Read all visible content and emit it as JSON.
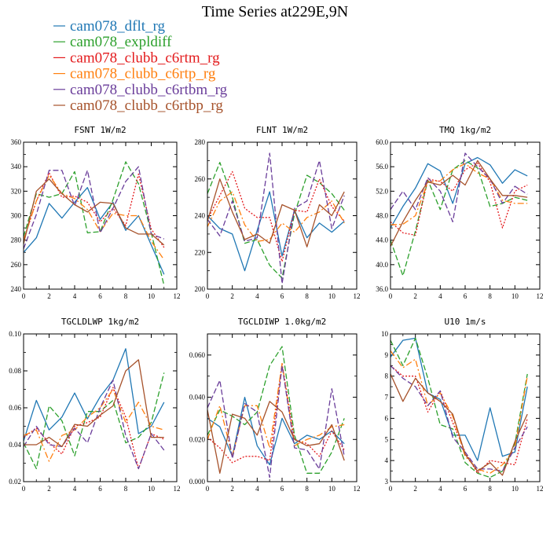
{
  "figure": {
    "title": "Time Series at229E,9N",
    "legend": [
      {
        "name": "cam078_dflt_rg",
        "color": "#1f77b4",
        "dash": ""
      },
      {
        "name": "cam078_expldiff",
        "color": "#2ca02c",
        "dash": "7,3"
      },
      {
        "name": "cam078_clubb_c6rtm_rg",
        "color": "#e31a1c",
        "dash": "2,2"
      },
      {
        "name": "cam078_clubb_c6rtp_rg",
        "color": "#ff7f0e",
        "dash": "8,3,2,3"
      },
      {
        "name": "cam078_clubb_c6rtbm_rg",
        "color": "#6a3d9a",
        "dash": "7,3"
      },
      {
        "name": "cam078_clubb_c6rtbp_rg",
        "color": "#a6522b",
        "dash": ""
      }
    ]
  },
  "chart_data": [
    {
      "type": "line",
      "title": "FSNT  1W/m2",
      "x": [
        0,
        1,
        2,
        3,
        4,
        5,
        6,
        7,
        8,
        9,
        10,
        11
      ],
      "xlim": [
        0,
        12
      ],
      "xticks": [
        0,
        2,
        4,
        6,
        8,
        10,
        12
      ],
      "ylim": [
        240,
        360
      ],
      "yticks": [
        240,
        260,
        280,
        300,
        320,
        340,
        360
      ],
      "ytick_labels": [
        "240",
        "260",
        "280",
        "300",
        "320",
        "340",
        "360"
      ],
      "series": [
        {
          "values": [
            270,
            282,
            310,
            298,
            311,
            323,
            297,
            311,
            288,
            300,
            276,
            252
          ]
        },
        {
          "values": [
            283,
            318,
            315,
            318,
            336,
            286,
            287,
            313,
            344,
            326,
            286,
            243
          ]
        },
        {
          "values": [
            280,
            312,
            335,
            315,
            316,
            311,
            295,
            306,
            292,
            334,
            289,
            274
          ]
        },
        {
          "values": [
            280,
            312,
            333,
            318,
            314,
            305,
            287,
            302,
            300,
            300,
            279,
            264
          ]
        },
        {
          "values": [
            273,
            301,
            337,
            337,
            308,
            337,
            286,
            306,
            328,
            340,
            285,
            281
          ]
        },
        {
          "values": [
            277,
            320,
            330,
            318,
            309,
            303,
            311,
            310,
            290,
            285,
            285,
            276
          ]
        }
      ]
    },
    {
      "type": "line",
      "title": "FLNT  1W/m2",
      "x": [
        0,
        1,
        2,
        3,
        4,
        5,
        6,
        7,
        8,
        9,
        10,
        11
      ],
      "xlim": [
        0,
        12
      ],
      "xticks": [
        0,
        2,
        4,
        6,
        8,
        10,
        12
      ],
      "ylim": [
        200,
        280
      ],
      "yticks": [
        200,
        220,
        240,
        260,
        280
      ],
      "ytick_labels": [
        "200",
        "220",
        "240",
        "260",
        "280"
      ],
      "series": [
        {
          "values": [
            240,
            233,
            230,
            210,
            232,
            253,
            218,
            243,
            228,
            236,
            231,
            237
          ]
        },
        {
          "values": [
            252,
            269,
            250,
            225,
            227,
            213,
            206,
            241,
            262,
            258,
            252,
            243
          ]
        },
        {
          "values": [
            238,
            251,
            264,
            244,
            239,
            239,
            215,
            243,
            242,
            260,
            245,
            237
          ]
        },
        {
          "values": [
            234,
            248,
            253,
            235,
            226,
            227,
            236,
            231,
            239,
            242,
            248,
            236
          ]
        },
        {
          "values": [
            238,
            229,
            248,
            226,
            228,
            274,
            203,
            244,
            248,
            270,
            233,
            251
          ]
        },
        {
          "values": [
            237,
            260,
            242,
            227,
            230,
            225,
            246,
            243,
            223,
            246,
            240,
            253
          ]
        }
      ]
    },
    {
      "type": "line",
      "title": "TMQ  1kg/m2",
      "x": [
        0,
        1,
        2,
        3,
        4,
        5,
        6,
        7,
        8,
        9,
        10,
        11
      ],
      "xlim": [
        0,
        12
      ],
      "xticks": [
        0,
        2,
        4,
        6,
        8,
        10,
        12
      ],
      "ylim": [
        36,
        60
      ],
      "yticks": [
        36,
        40,
        44,
        48,
        52,
        56,
        60
      ],
      "ytick_labels": [
        "36.0",
        "40.0",
        "44.0",
        "48.0",
        "52.0",
        "56.0",
        "60.0"
      ],
      "series": [
        {
          "values": [
            46,
            49.5,
            52.5,
            56.5,
            55.3,
            50,
            56.5,
            57.5,
            56.3,
            53.3,
            55.5,
            54.5
          ]
        },
        {
          "values": [
            44,
            38.2,
            45.5,
            53.8,
            49,
            55.5,
            57,
            55.8,
            49.5,
            50,
            51,
            50.5
          ]
        },
        {
          "values": [
            47,
            45.2,
            44.8,
            54,
            53.6,
            52,
            55.5,
            56.6,
            53.5,
            46,
            52,
            53
          ]
        },
        {
          "values": [
            46.5,
            46.6,
            48,
            53.5,
            53.7,
            55.5,
            56.5,
            55,
            54,
            50.5,
            50,
            50
          ]
        },
        {
          "values": [
            49,
            52,
            49,
            54.2,
            52,
            47,
            58.2,
            56,
            54,
            50,
            52.8,
            51.5
          ]
        },
        {
          "values": [
            43,
            47,
            50.5,
            53.5,
            53,
            54.6,
            53,
            57,
            54,
            51.3,
            51.3,
            51
          ]
        }
      ]
    },
    {
      "type": "line",
      "title": "TGCLDLWP  1kg/m2",
      "x": [
        0,
        1,
        2,
        3,
        4,
        5,
        6,
        7,
        8,
        9,
        10,
        11
      ],
      "xlim": [
        0,
        12
      ],
      "xticks": [
        0,
        2,
        4,
        6,
        8,
        10,
        12
      ],
      "ylim": [
        0.02,
        0.1
      ],
      "yticks": [
        0.02,
        0.04,
        0.06,
        0.08,
        0.1
      ],
      "ytick_labels": [
        "0.02",
        "0.04",
        "0.06",
        "0.08",
        "0.10"
      ],
      "series": [
        {
          "values": [
            0.042,
            0.064,
            0.048,
            0.055,
            0.068,
            0.054,
            0.066,
            0.075,
            0.092,
            0.046,
            0.05,
            0.063
          ]
        },
        {
          "values": [
            0.041,
            0.027,
            0.061,
            0.053,
            0.034,
            0.058,
            0.058,
            0.064,
            0.041,
            0.044,
            0.052,
            0.079
          ]
        },
        {
          "values": [
            0.044,
            0.049,
            0.041,
            0.035,
            0.05,
            0.052,
            0.055,
            0.071,
            0.055,
            0.027,
            0.046,
            0.043
          ]
        },
        {
          "values": [
            0.045,
            0.048,
            0.031,
            0.045,
            0.048,
            0.055,
            0.06,
            0.07,
            0.052,
            0.063,
            0.05,
            0.048
          ]
        },
        {
          "values": [
            0.039,
            0.05,
            0.04,
            0.039,
            0.049,
            0.041,
            0.06,
            0.075,
            0.045,
            0.027,
            0.046,
            0.037
          ]
        },
        {
          "values": [
            0.04,
            0.04,
            0.044,
            0.039,
            0.051,
            0.05,
            0.056,
            0.061,
            0.08,
            0.086,
            0.044,
            0.044
          ]
        }
      ]
    },
    {
      "type": "line",
      "title": "TGCLDIWP  1.0kg/m2",
      "x": [
        0,
        1,
        2,
        3,
        4,
        5,
        6,
        7,
        8,
        9,
        10,
        11
      ],
      "xlim": [
        0,
        12
      ],
      "xticks": [
        0,
        2,
        4,
        6,
        8,
        10,
        12
      ],
      "ylim": [
        0,
        0.07
      ],
      "yticks": [
        0,
        0.02,
        0.04,
        0.06
      ],
      "ytick_labels": [
        "0.000",
        "0.020",
        "0.040",
        "0.060"
      ],
      "series": [
        {
          "values": [
            0.03,
            0.026,
            0.012,
            0.04,
            0.017,
            0.008,
            0.03,
            0.018,
            0.022,
            0.02,
            0.024,
            0.018
          ]
        },
        {
          "values": [
            0.022,
            0.034,
            0.031,
            0.027,
            0.033,
            0.055,
            0.064,
            0.022,
            0.004,
            0.004,
            0.014,
            0.03
          ]
        },
        {
          "values": [
            0.021,
            0.016,
            0.009,
            0.012,
            0.012,
            0.01,
            0.056,
            0.02,
            0.018,
            0.012,
            0.024,
            0.015
          ]
        },
        {
          "values": [
            0.02,
            0.036,
            0.012,
            0.036,
            0.036,
            0.016,
            0.056,
            0.017,
            0.02,
            0.022,
            0.026,
            0.027
          ]
        },
        {
          "values": [
            0.035,
            0.048,
            0.011,
            0.037,
            0.033,
            0.002,
            0.055,
            0.016,
            0.015,
            0.006,
            0.044,
            0.012
          ]
        },
        {
          "values": [
            0.034,
            0.004,
            0.032,
            0.03,
            0.022,
            0.038,
            0.033,
            0.02,
            0.017,
            0.018,
            0.027,
            0.01
          ]
        }
      ]
    },
    {
      "type": "line",
      "title": "U10  1m/s",
      "x": [
        0,
        1,
        2,
        3,
        4,
        5,
        6,
        7,
        8,
        9,
        10,
        11
      ],
      "xlim": [
        0,
        12
      ],
      "xticks": [
        0,
        2,
        4,
        6,
        8,
        10,
        12
      ],
      "ylim": [
        3,
        10
      ],
      "yticks": [
        3,
        4,
        5,
        6,
        7,
        8,
        9,
        10
      ],
      "ytick_labels": [
        "3",
        "4",
        "5",
        "6",
        "7",
        "8",
        "9",
        "10"
      ],
      "series": [
        {
          "values": [
            8.9,
            9.7,
            9.8,
            7.2,
            6.9,
            5.2,
            5.2,
            4,
            6.5,
            4.2,
            4.4,
            7.5
          ]
        },
        {
          "values": [
            9.7,
            8.5,
            9.8,
            7.9,
            5.7,
            5.5,
            3.9,
            3.4,
            3.2,
            3.5,
            4.8,
            8.1
          ]
        },
        {
          "values": [
            8.5,
            8,
            8,
            6.3,
            7.3,
            5.8,
            4.4,
            3.4,
            4,
            3.9,
            3.8,
            6
          ]
        },
        {
          "values": [
            9.2,
            8.4,
            8.8,
            6.6,
            7.2,
            6.1,
            4.2,
            3.6,
            3.4,
            3.8,
            4.6,
            8
          ]
        },
        {
          "values": [
            8.5,
            7.9,
            7.5,
            6.6,
            7.3,
            5.1,
            4.4,
            3.6,
            3.6,
            3.5,
            4.6,
            5.6
          ]
        },
        {
          "values": [
            8.1,
            6.8,
            7.9,
            7.2,
            6.8,
            6.2,
            4.3,
            3.5,
            3.9,
            3.3,
            4.9,
            6.2
          ]
        }
      ]
    }
  ]
}
